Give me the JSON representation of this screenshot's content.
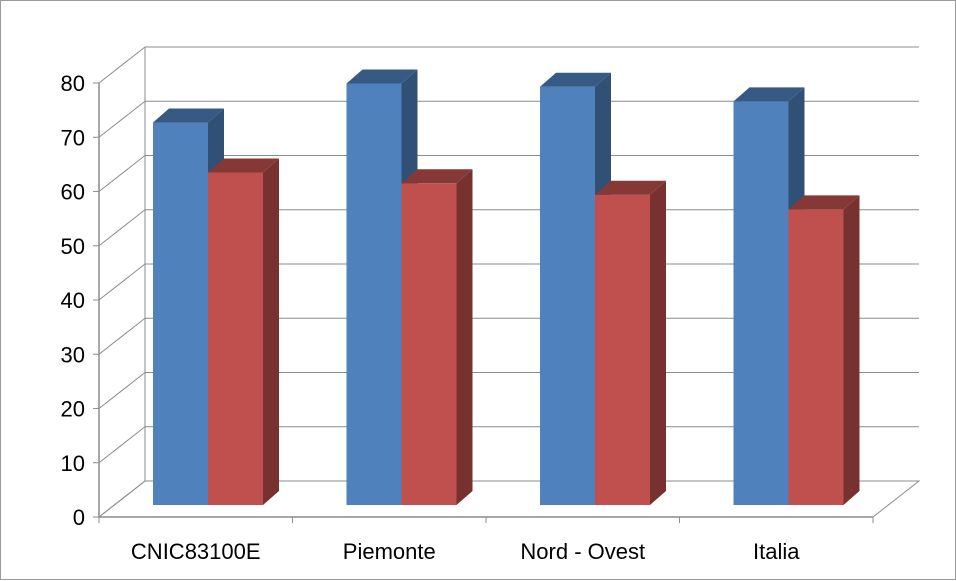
{
  "chart_data": {
    "type": "bar",
    "style": "3d-clustered-column",
    "categories": [
      "CNIC83100E",
      "Piemonte",
      "Nord - Ovest",
      "Italia"
    ],
    "series": [
      {
        "values": [
          70.5,
          77.7,
          77.1,
          74.4
        ],
        "color": "#4f81bd"
      },
      {
        "values": [
          61.3,
          59.3,
          57.2,
          54.5
        ],
        "color": "#c0504d"
      }
    ],
    "ylim": [
      0,
      80
    ],
    "yticks": [
      0,
      10,
      20,
      30,
      40,
      50,
      60,
      70,
      80
    ],
    "grid": true,
    "legend": "none",
    "title": "",
    "xlabel": "",
    "ylabel": ""
  }
}
